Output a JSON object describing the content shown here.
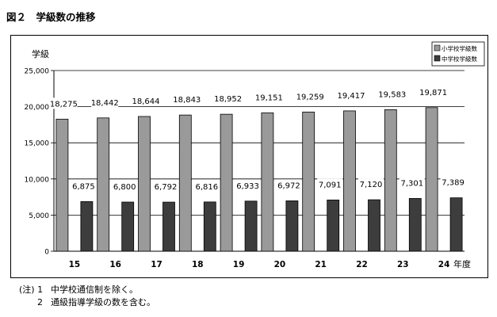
{
  "figure": {
    "title": "図２　学級数の推移"
  },
  "notes": [
    {
      "prefix": "(注) 1",
      "text": "中学校通信制を除く。"
    },
    {
      "prefix": "2",
      "text": "通級指導学級の数を含む。"
    }
  ],
  "chart_data": {
    "type": "bar",
    "ylabel": "学級",
    "xlabel_suffix": "年度",
    "ylim": [
      0,
      25000
    ],
    "yticks": [
      0,
      5000,
      10000,
      15000,
      20000,
      25000
    ],
    "ytick_labels": [
      "0",
      "5,000",
      "10,000",
      "15,000",
      "20,000",
      "25,000"
    ],
    "grid": true,
    "legend_position": "top-right",
    "categories": [
      "15",
      "16",
      "17",
      "18",
      "19",
      "20",
      "21",
      "22",
      "23",
      "24"
    ],
    "series": [
      {
        "name": "小学校学級数",
        "color": "#9a9a9a",
        "values": [
          18275,
          18442,
          18644,
          18843,
          18952,
          19151,
          19259,
          19417,
          19583,
          19871
        ],
        "labels": [
          "18,275",
          "18,442",
          "18,644",
          "18,843",
          "18,952",
          "19,151",
          "19,259",
          "19,417",
          "19,583",
          "19,871"
        ]
      },
      {
        "name": "中学校学級数",
        "color": "#3d3d3d",
        "values": [
          6875,
          6800,
          6792,
          6816,
          6933,
          6972,
          7091,
          7120,
          7301,
          7389
        ],
        "labels": [
          "6,875",
          "6,800",
          "6,792",
          "6,816",
          "6,933",
          "6,972",
          "7,091",
          "7,120",
          "7,301",
          "7,389"
        ]
      }
    ]
  }
}
